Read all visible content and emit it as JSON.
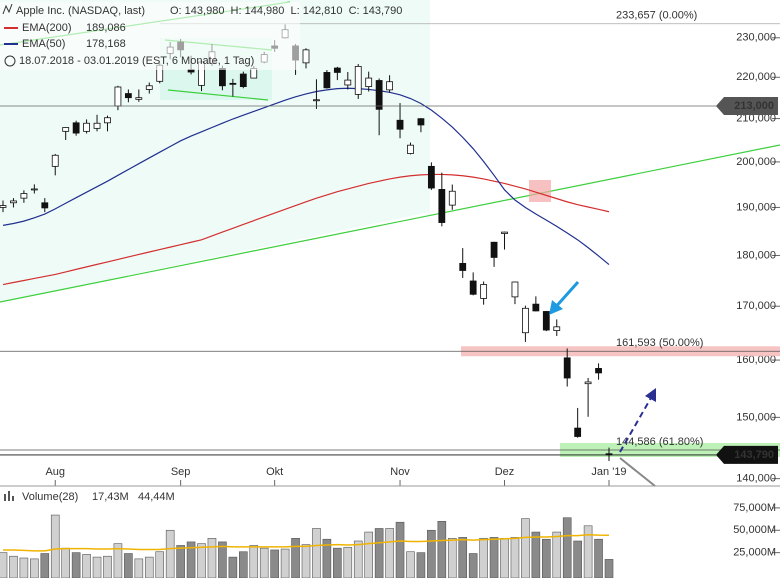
{
  "chart_data": {
    "type": "candlestick",
    "title": "Apple Inc. (NASDAQ, last)",
    "ohlc_text": "O: 143,980  H: 144,980  L: 142,810  C: 143,790",
    "period": "18.07.2018 - 03.01.2019 (EST, 6 Monate, 1 Tag)",
    "categories": [
      null,
      null,
      null,
      null,
      null,
      "Aug",
      null,
      null,
      null,
      null,
      null,
      null,
      null,
      null,
      null,
      null,
      null,
      "Sep",
      null,
      null,
      null,
      null,
      null,
      null,
      null,
      null,
      "Okt",
      null,
      null,
      null,
      null,
      null,
      null,
      null,
      null,
      null,
      null,
      null,
      "Nov",
      null,
      null,
      null,
      null,
      null,
      null,
      null,
      null,
      null,
      "Dez",
      null,
      null,
      null,
      null,
      null,
      null,
      null,
      null,
      null,
      "Jan '19"
    ],
    "open": [
      190,
      191,
      192,
      194,
      191,
      199,
      207,
      209,
      207,
      207.7,
      209,
      213,
      216,
      214.6,
      217,
      219,
      226,
      228.9,
      221.9,
      218,
      223.5,
      222.2,
      218.5,
      220.8,
      219.8,
      223.8,
      227.9,
      230,
      227.9,
      223.6,
      214.5,
      221.2,
      222.3,
      218.1,
      215.8,
      217.7,
      219.2,
      216.9,
      209.6,
      201.9,
      209.98,
      199,
      193.9,
      190.5,
      178.4,
      174.9,
      171.5,
      182.7,
      184.5,
      171.8,
      165,
      170.4,
      169,
      165.4,
      160.4,
      148.2,
      155.8,
      158.5,
      143.98
    ],
    "high": [
      191.5,
      192,
      193.7,
      195,
      192,
      201.8,
      208,
      209.5,
      209.8,
      210.9,
      210.7,
      217.9,
      217,
      217,
      218.7,
      223.5,
      228.9,
      229.7,
      225.4,
      224.3,
      228.4,
      222.9,
      219.6,
      221.4,
      222.8,
      226.4,
      229.4,
      233.5,
      228.4,
      227.3,
      219.5,
      221.8,
      222.6,
      221.3,
      223.3,
      221.4,
      219.7,
      220.5,
      213.7,
      204.4,
      210.1,
      199.9,
      197.6,
      194.97,
      181.5,
      176.6,
      174.8,
      182.8,
      184.9,
      174.8,
      170.1,
      171.9,
      169.1,
      167.5,
      162.1,
      151.6,
      156.8,
      159.4,
      144.98
    ],
    "low": [
      189,
      190,
      191,
      193,
      189,
      197,
      205,
      206,
      206.5,
      207,
      207,
      212,
      213.9,
      214,
      216,
      218.5,
      224.5,
      225,
      220.7,
      216.6,
      222.8,
      216.8,
      215.3,
      217.3,
      219.7,
      223.5,
      226.4,
      229.8,
      220.6,
      222.2,
      212.3,
      217.2,
      219.3,
      217,
      214.7,
      216.5,
      206.1,
      216.2,
      205.4,
      201.7,
      206.8,
      193.8,
      186,
      189.5,
      175.5,
      172.1,
      170.3,
      177.7,
      181.2,
      170.4,
      163.3,
      169,
      165.3,
      164.4,
      155.3,
      146.6,
      150.1,
      156.5,
      142.81
    ],
    "close": [
      190.4,
      191.4,
      193,
      194,
      189.9,
      201.5,
      207.9,
      206.6,
      208.9,
      208.9,
      210.2,
      217.6,
      215,
      215,
      217.9,
      223,
      227.6,
      226.9,
      221.3,
      223.8,
      226.4,
      217.9,
      218.4,
      217.7,
      222.2,
      225.7,
      227.3,
      232.1,
      224.3,
      226.9,
      214.5,
      217.4,
      221.2,
      219.3,
      222.7,
      219.8,
      212.2,
      218.9,
      207.5,
      203.8,
      208.5,
      194.2,
      186.8,
      193.5,
      176.98,
      172.3,
      174.2,
      179.6,
      184.8,
      174.7,
      169.6,
      169.1,
      165.5,
      166.1,
      156.8,
      146.8,
      156.1,
      157.7,
      143.79
    ],
    "log_scale": true,
    "ylim": [
      139,
      240
    ],
    "yticks": [
      {
        "value": 140,
        "label": "140,000"
      },
      {
        "value": 150,
        "label": "150,000"
      },
      {
        "value": 160,
        "label": "160,000"
      },
      {
        "value": 170,
        "label": "170,000"
      },
      {
        "value": 180,
        "label": "180,000"
      },
      {
        "value": 190,
        "label": "190,000"
      },
      {
        "value": 200,
        "label": "200,000"
      },
      {
        "value": 210,
        "label": "210,000"
      },
      {
        "value": 220,
        "label": "220,000"
      },
      {
        "value": 230,
        "label": "230,000"
      }
    ],
    "series": [
      {
        "name": "EMA(200)",
        "value_label": "189,086",
        "color": "#d32f2f",
        "values": [
          174.2,
          174.6,
          175,
          175.4,
          175.8,
          176.2,
          176.7,
          177.2,
          177.7,
          178.2,
          178.7,
          179.2,
          179.7,
          180.2,
          180.7,
          181.2,
          181.7,
          182.2,
          182.7,
          183.2,
          184,
          184.8,
          185.6,
          186.4,
          187.2,
          188,
          188.8,
          189.6,
          190.4,
          191.2,
          192,
          192.7,
          193.4,
          194,
          194.6,
          195.2,
          195.7,
          196.2,
          196.6,
          196.9,
          197.1,
          197.2,
          197.2,
          197.1,
          196.9,
          196.6,
          196.2,
          195.7,
          195.2,
          194.6,
          194,
          193.3,
          192.6,
          191.9,
          191.2,
          190.6,
          190.1,
          189.6,
          189.086
        ]
      },
      {
        "name": "EMA(50)",
        "value_label": "178,168",
        "color": "#22308f",
        "values": [
          186.2,
          186.6,
          187.1,
          187.8,
          188.6,
          189.7,
          190.9,
          192.1,
          193.3,
          194.5,
          195.7,
          197,
          198.3,
          199.6,
          200.9,
          202.2,
          203.5,
          204.8,
          205.9,
          206.9,
          207.9,
          208.9,
          209.9,
          210.8,
          211.7,
          212.6,
          213.5,
          214.4,
          215.2,
          215.9,
          216.5,
          216.9,
          217.2,
          217.3,
          217.2,
          217,
          216.7,
          216.3,
          215.7,
          214.8,
          213.6,
          212,
          210.1,
          208,
          205.6,
          203,
          200.1,
          197,
          193.8,
          191.6,
          190,
          188.6,
          187.3,
          186,
          184.6,
          183.2,
          181.6,
          179.9,
          178.168
        ]
      }
    ],
    "levels": [
      {
        "value": 233.657,
        "label": "233,657 (0.00%)"
      },
      {
        "value": 161.593,
        "label": "161,593 (50.00%)"
      },
      {
        "value": 144.586,
        "label": "144,586 (61.80%)"
      }
    ],
    "markers": [
      {
        "value": 213,
        "label": "213,000",
        "color": "#555555"
      },
      {
        "value": 143.79,
        "label": "143,790",
        "color": "#111111"
      }
    ],
    "volume": {
      "name": "Volume(28)",
      "value_label": "17,43M",
      "values": [
        25,
        21,
        19,
        18,
        24,
        67,
        30,
        25,
        23,
        20,
        21,
        35,
        24,
        18,
        20,
        26,
        50,
        33,
        37,
        35,
        41,
        37,
        20,
        26,
        33,
        30,
        28,
        29,
        41,
        34,
        52,
        40,
        30,
        31,
        38,
        48,
        52,
        52,
        59,
        26,
        25,
        50,
        60,
        41,
        42,
        24,
        41,
        42,
        41,
        42,
        63,
        48,
        40,
        48,
        64,
        38,
        55,
        40,
        17.43
      ],
      "ylim": [
        0,
        95
      ],
      "yticks": [
        {
          "value": 25,
          "label": "25,000M"
        },
        {
          "value": 50,
          "label": "50,000M"
        },
        {
          "value": 75,
          "label": "75,000M"
        }
      ],
      "average": {
        "value_label": "44,44M",
        "color": "#f0b400",
        "values": [
          28,
          28,
          27.5,
          27,
          27,
          29,
          29.5,
          29.5,
          29.5,
          29,
          29,
          29.5,
          29,
          28.5,
          28.5,
          28.5,
          29.5,
          30,
          30.5,
          31,
          31.5,
          32,
          31.5,
          31.5,
          31.5,
          31.5,
          31.5,
          31.5,
          32,
          32,
          33,
          33.5,
          34,
          33.5,
          34,
          35,
          36,
          37,
          38,
          37.5,
          37.5,
          38,
          38.5,
          39,
          39.5,
          39,
          39.5,
          40,
          40.5,
          41,
          42,
          42.5,
          42.5,
          43,
          44,
          44,
          45,
          44.5,
          44.44
        ]
      }
    }
  }
}
